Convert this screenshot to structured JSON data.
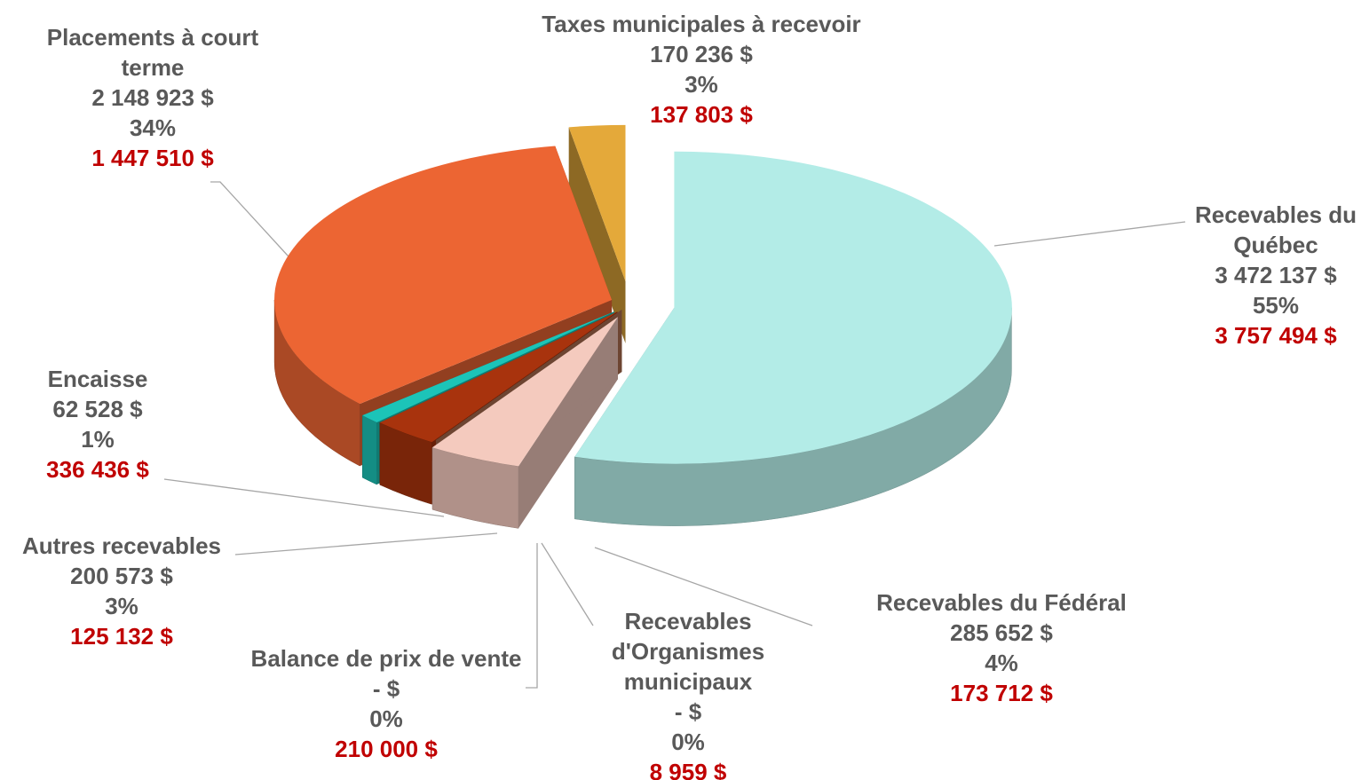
{
  "chart_data": {
    "type": "pie",
    "categories": [
      "Recevables du Québec",
      "Recevables du Fédéral",
      "Recevables d'Organismes municipaux",
      "Balance de prix de vente",
      "Autres recevables",
      "Encaisse",
      "Placements à court terme",
      "Taxes municipales à recevoir"
    ],
    "values": [
      3472137,
      285652,
      0,
      0,
      200573,
      62528,
      2148923,
      170236
    ],
    "value_labels": [
      "3 472 137  $",
      "285 652  $",
      "-  $",
      "-  $",
      "200 573  $",
      "62 528  $",
      "2 148 923  $",
      "170 236  $"
    ],
    "percentages": [
      55,
      4,
      0,
      0,
      3,
      1,
      34,
      3
    ],
    "percent_labels": [
      "55%",
      "4%",
      "0%",
      "0%",
      "3%",
      "1%",
      "34%",
      "3%"
    ],
    "prior_values": [
      3757494,
      173712,
      8959,
      210000,
      125132,
      336436,
      1447510,
      137803
    ],
    "prior_value_labels": [
      "3 757 494  $",
      "173 712  $",
      "8 959  $",
      "210 000  $",
      "125 132  $",
      "336 436  $",
      "1 447 510  $",
      "137 803  $"
    ],
    "colors": [
      "#b3ece7",
      "#f4cabe",
      "#c9a48e",
      "#b07050",
      "#a8330d",
      "#1cc4b8",
      "#ec6533",
      "#e4a93a"
    ]
  }
}
